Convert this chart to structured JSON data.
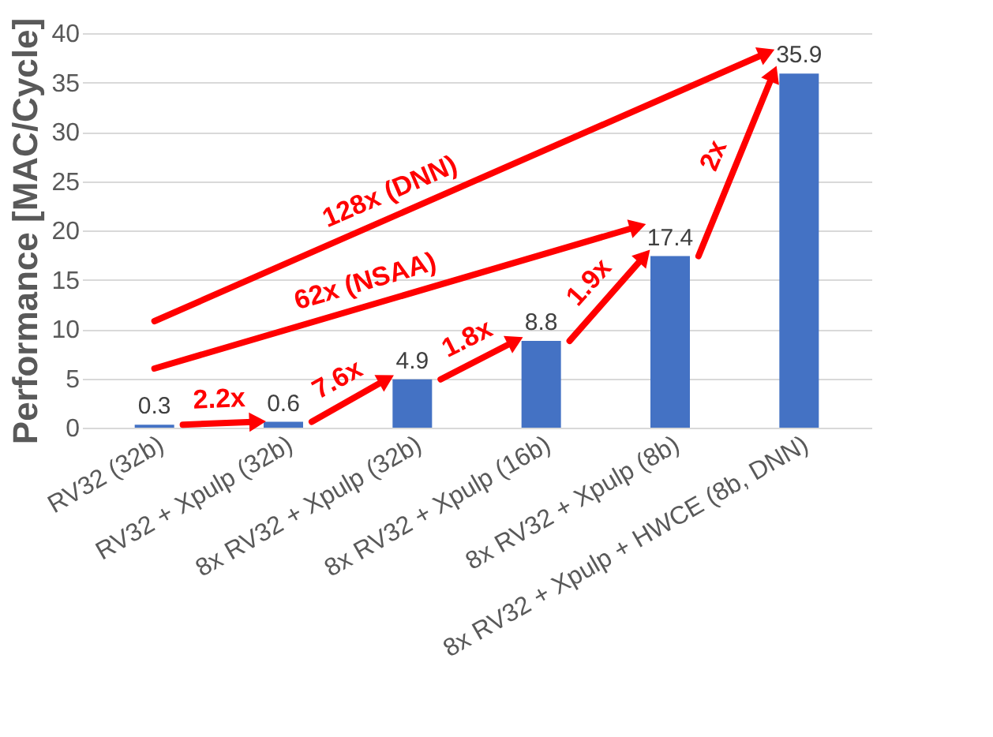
{
  "chart_data": {
    "type": "bar",
    "ylabel": "Performance [MAC/Cycle]",
    "categories": [
      "RV32 (32b)",
      "RV32 + Xpulp (32b)",
      "8x RV32 + Xpulp (32b)",
      "8x RV32 + Xpulp (16b)",
      "8x RV32 + Xpulp (8b)",
      "8x RV32 + Xpulp + HWCE (8b, DNN)"
    ],
    "values": [
      0.3,
      0.6,
      4.9,
      8.8,
      17.4,
      35.9
    ],
    "color": "#4472c4",
    "data_labels": true,
    "ylim": [
      0,
      40
    ],
    "yticks": [
      0,
      5,
      10,
      15,
      20,
      25,
      30,
      35,
      40
    ],
    "grid": "y",
    "annotations": [
      "2.2x",
      "7.6x",
      "1.8x",
      "1.9x",
      "2x",
      "128x (DNN)",
      "62x (NSAA)"
    ]
  }
}
